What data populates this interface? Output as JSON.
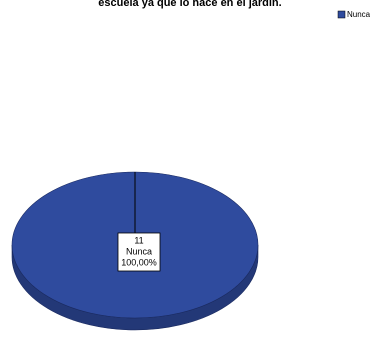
{
  "chart_data": {
    "type": "pie",
    "title": "escuela ya que lo hace en el jardín.",
    "categories": [
      "Nunca"
    ],
    "counts": [
      11
    ],
    "values": [
      100
    ],
    "value_labels": [
      "100,00%"
    ],
    "colors": [
      "#2f4b9e"
    ],
    "legend": "top-right"
  }
}
